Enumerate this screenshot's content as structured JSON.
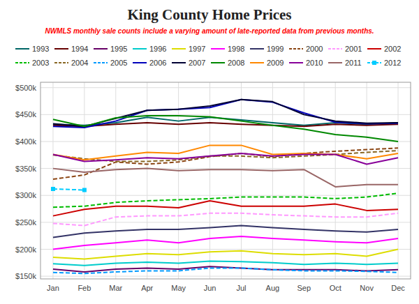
{
  "chart_data": {
    "type": "line",
    "title": "King County Home Prices",
    "subtitle": "NWMLS monthly sale counts include a varying amount of late-reported  data from previous months.",
    "categories": [
      "Jan",
      "Feb",
      "Mar",
      "Apr",
      "May",
      "Jun",
      "Jul",
      "Aug",
      "Sep",
      "Oct",
      "Nov",
      "Dec"
    ],
    "series": [
      {
        "name": "1993",
        "color": "#006666",
        "line_style": "solid",
        "values": [
          432000,
          430000,
          435000,
          445000,
          438000,
          445000,
          440000,
          435000,
          430000,
          435000,
          432000,
          435000
        ]
      },
      {
        "name": "1994",
        "color": "#660000",
        "line_style": "solid",
        "values": [
          430000,
          428000,
          432000,
          435000,
          432000,
          435000,
          432000,
          430000,
          428000,
          432000,
          430000,
          432000
        ]
      },
      {
        "name": "1995",
        "color": "#660066",
        "line_style": "solid",
        "values": [
          163000,
          158000,
          163000,
          165000,
          163000,
          168000,
          165000,
          162000,
          162000,
          162000,
          160000,
          162000
        ]
      },
      {
        "name": "1996",
        "color": "#00CCCC",
        "line_style": "solid",
        "values": [
          173000,
          170000,
          174000,
          176000,
          174000,
          178000,
          177000,
          175000,
          172000,
          174000,
          172000,
          174000
        ]
      },
      {
        "name": "1997",
        "color": "#DDDD00",
        "line_style": "solid",
        "values": [
          185000,
          182000,
          187000,
          192000,
          190000,
          195000,
          197000,
          192000,
          190000,
          192000,
          187000,
          200000
        ]
      },
      {
        "name": "1998",
        "color": "#FF00FF",
        "line_style": "solid",
        "values": [
          200000,
          207000,
          212000,
          217000,
          212000,
          220000,
          224000,
          220000,
          217000,
          214000,
          212000,
          220000
        ]
      },
      {
        "name": "1999",
        "color": "#333366",
        "line_style": "solid",
        "values": [
          222000,
          230000,
          234000,
          237000,
          237000,
          240000,
          244000,
          240000,
          237000,
          234000,
          232000,
          237000
        ]
      },
      {
        "name": "2000",
        "color": "#8B4513",
        "line_style": "dashed",
        "values": [
          330000,
          338000,
          362000,
          358000,
          362000,
          372000,
          378000,
          372000,
          378000,
          382000,
          385000,
          388000
        ]
      },
      {
        "name": "2001",
        "color": "#FF99FF",
        "line_style": "dashed",
        "values": [
          248000,
          244000,
          260000,
          262000,
          262000,
          267000,
          267000,
          264000,
          262000,
          260000,
          260000,
          267000
        ]
      },
      {
        "name": "2002",
        "color": "#CC0000",
        "line_style": "solid",
        "values": [
          262000,
          274000,
          280000,
          280000,
          277000,
          290000,
          280000,
          280000,
          280000,
          284000,
          272000,
          274000
        ]
      },
      {
        "name": "2003",
        "color": "#00BB00",
        "line_style": "dashed",
        "values": [
          278000,
          280000,
          287000,
          290000,
          292000,
          294000,
          297000,
          297000,
          297000,
          294000,
          297000,
          304000
        ]
      },
      {
        "name": "2004",
        "color": "#886622",
        "line_style": "dashed",
        "values": [
          375000,
          368000,
          363000,
          363000,
          366000,
          373000,
          373000,
          370000,
          373000,
          376000,
          380000,
          383000
        ]
      },
      {
        "name": "2005",
        "color": "#0099FF",
        "line_style": "dashed",
        "values": [
          157000,
          155000,
          158000,
          160000,
          160000,
          165000,
          165000,
          162000,
          160000,
          160000,
          159000,
          157000
        ]
      },
      {
        "name": "2006",
        "color": "#0000BB",
        "line_style": "solid",
        "values": [
          428000,
          426000,
          438000,
          458000,
          460000,
          463000,
          478000,
          473000,
          453000,
          436000,
          433000,
          434000
        ]
      },
      {
        "name": "2007",
        "color": "#000033",
        "line_style": "solid",
        "values": [
          433000,
          428000,
          443000,
          458000,
          460000,
          466000,
          478000,
          474000,
          450000,
          438000,
          434000,
          435000
        ]
      },
      {
        "name": "2008",
        "color": "#008800",
        "line_style": "solid",
        "values": [
          441000,
          428000,
          444000,
          448000,
          448000,
          446000,
          438000,
          430000,
          423000,
          413000,
          408000,
          400000
        ]
      },
      {
        "name": "2009",
        "color": "#FF8800",
        "line_style": "solid",
        "values": [
          376000,
          366000,
          373000,
          380000,
          378000,
          393000,
          393000,
          376000,
          378000,
          376000,
          368000,
          378000
        ]
      },
      {
        "name": "2010",
        "color": "#880099",
        "line_style": "solid",
        "values": [
          376000,
          363000,
          366000,
          370000,
          368000,
          373000,
          378000,
          373000,
          376000,
          376000,
          358000,
          370000
        ]
      },
      {
        "name": "2011",
        "color": "#996666",
        "line_style": "solid",
        "values": [
          350000,
          343000,
          348000,
          350000,
          346000,
          348000,
          348000,
          346000,
          348000,
          316000,
          320000,
          320000
        ]
      },
      {
        "name": "2012",
        "color": "#00CCFF",
        "line_style": "dashed",
        "marker": "square",
        "values": [
          312000,
          310000,
          null,
          null,
          null,
          null,
          null,
          null,
          null,
          null,
          null,
          null
        ]
      }
    ],
    "ylim": [
      145000,
      510000
    ],
    "yticks": [
      {
        "value": 150000,
        "label": "$150k"
      },
      {
        "value": 200000,
        "label": "$200k"
      },
      {
        "value": 250000,
        "label": "$250k"
      },
      {
        "value": 300000,
        "label": "$300k"
      },
      {
        "value": 350000,
        "label": "$350k"
      },
      {
        "value": 400000,
        "label": "$400k"
      },
      {
        "value": 450000,
        "label": "$450k"
      },
      {
        "value": 500000,
        "label": "$500k"
      }
    ],
    "grid": true,
    "legend": "top"
  }
}
